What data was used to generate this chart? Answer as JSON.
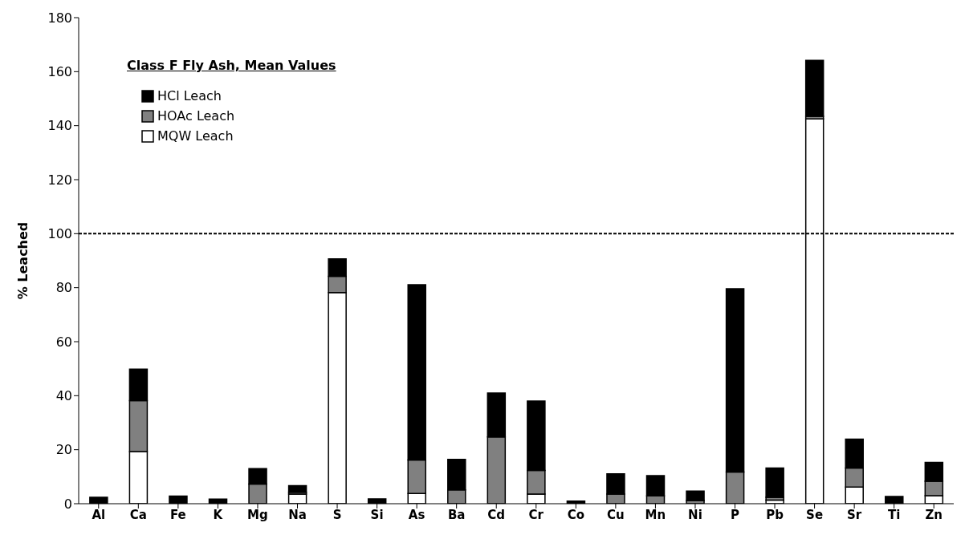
{
  "chart_data": {
    "type": "bar",
    "stacked": true,
    "legend_title": "Class F Fly Ash, Mean Values",
    "ylabel": "% Leached",
    "categories": [
      "Al",
      "Ca",
      "Fe",
      "K",
      "Mg",
      "Na",
      "S",
      "Si",
      "As",
      "Ba",
      "Cd",
      "Cr",
      "Co",
      "Cu",
      "Mn",
      "Ni",
      "P",
      "Pb",
      "Se",
      "Sr",
      "Ti",
      "Zn"
    ],
    "series": [
      {
        "name": "MQW Leach",
        "color": "#ffffff",
        "values": [
          0,
          19.3,
          0,
          0,
          null,
          3.6,
          78.2,
          0,
          3.8,
          null,
          0,
          3.6,
          0,
          0,
          0,
          null,
          0,
          1.3,
          142.5,
          6.2,
          0,
          3.0
        ]
      },
      {
        "name": "HOAc Leach",
        "color": "#808080",
        "values": [
          null,
          18.9,
          0,
          null,
          7.3,
          0.6,
          6.0,
          0,
          12.4,
          5.1,
          24.7,
          8.7,
          0,
          3.6,
          2.9,
          1.2,
          11.7,
          1.1,
          1.0,
          7.0,
          0,
          5.3
        ]
      },
      {
        "name": "HCl Leach",
        "color": "#000000",
        "values": [
          2.4,
          11.6,
          2.8,
          1.7,
          5.7,
          2.5,
          6.5,
          1.8,
          64.9,
          11.3,
          16.3,
          25.7,
          1.0,
          7.5,
          7.5,
          3.5,
          67.9,
          10.8,
          20.7,
          10.7,
          2.7,
          7.0
        ]
      }
    ],
    "ylim": [
      0,
      180
    ],
    "yticks": [
      0,
      20,
      40,
      60,
      80,
      100,
      120,
      140,
      160,
      180
    ],
    "grid": false,
    "legend": "top left",
    "ref_lines": [
      {
        "axis": "y",
        "value": 100,
        "color": "#000000",
        "line_style": "dashed"
      }
    ]
  }
}
